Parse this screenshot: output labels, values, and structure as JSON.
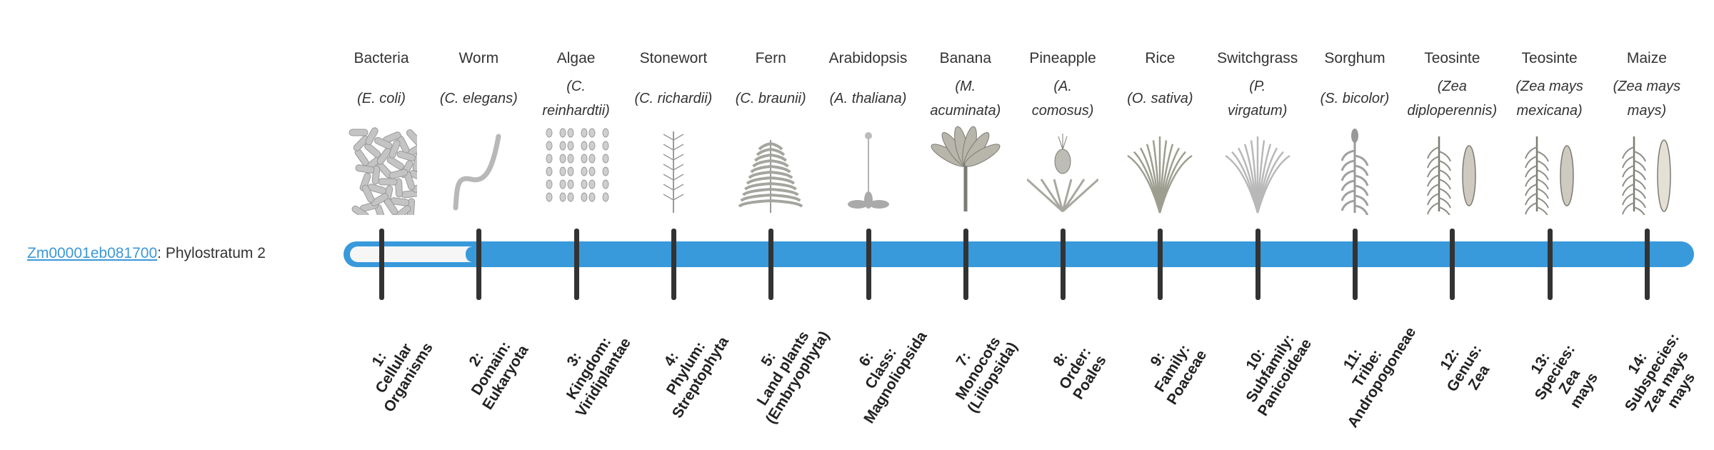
{
  "gene": {
    "id": "Zm00001eb081700",
    "separator": ":",
    "phylostratum_label": "Phylostratum 2",
    "phylostratum_value": 2,
    "total_strata": 14
  },
  "colors": {
    "bar": "#3899db",
    "fill": "#f6f6f6",
    "tick": "#333333",
    "link": "#3a98d8"
  },
  "organisms": [
    {
      "name": "Bacteria",
      "species": "(E. coli)",
      "icon": "bacteria-image",
      "stratum": "1:\nCellular\nOrganisms"
    },
    {
      "name": "Worm",
      "species": "(C. elegans)",
      "icon": "worm-image",
      "stratum": "2:\nDomain:\nEukaryota"
    },
    {
      "name": "Algae",
      "species": "(C.\nreinhardtii)",
      "icon": "algae-image",
      "stratum": "3:\nKingdom:\nViridiplantae"
    },
    {
      "name": "Stonewort",
      "species": "(C. richardii)",
      "icon": "stonewort-image",
      "stratum": "4:\nPhylum:\nStreptophyta"
    },
    {
      "name": "Fern",
      "species": "(C. braunii)",
      "icon": "fern-image",
      "stratum": "5:\nLand plants\n(Embryophyta)"
    },
    {
      "name": "Arabidopsis",
      "species": "(A. thaliana)",
      "icon": "arabidopsis-image",
      "stratum": "6:\nClass:\nMagnoliopsida"
    },
    {
      "name": "Banana",
      "species": "(M.\nacuminata)",
      "icon": "banana-image",
      "stratum": "7:\nMonocots\n(Liliopsida)"
    },
    {
      "name": "Pineapple",
      "species": "(A.\ncomosus)",
      "icon": "pineapple-image",
      "stratum": "8:\nOrder:\nPoales"
    },
    {
      "name": "Rice",
      "species": "(O. sativa)",
      "icon": "rice-image",
      "stratum": "9:\nFamily:\nPoaceae"
    },
    {
      "name": "Switchgrass",
      "species": "(P.\nvirgatum)",
      "icon": "switchgrass-image",
      "stratum": "10:\nSubfamily:\nPanicoideae"
    },
    {
      "name": "Sorghum",
      "species": "(S. bicolor)",
      "icon": "sorghum-image",
      "stratum": "11:\nTribe:\nAndropogoneae"
    },
    {
      "name": "Teosinte",
      "species": "(Zea\ndiploperennis)",
      "icon": "teosinte-image",
      "stratum": "12:\nGenus:\nZea"
    },
    {
      "name": "Teosinte",
      "species": "(Zea mays\nmexicana)",
      "icon": "teosinte-mexicana-image",
      "stratum": "13:\nSpecies:\nZea\nmays"
    },
    {
      "name": "Maize",
      "species": "(Zea mays\nmays)",
      "icon": "maize-image",
      "stratum": "14:\nSubspecies:\nZea mays\nmays"
    }
  ]
}
